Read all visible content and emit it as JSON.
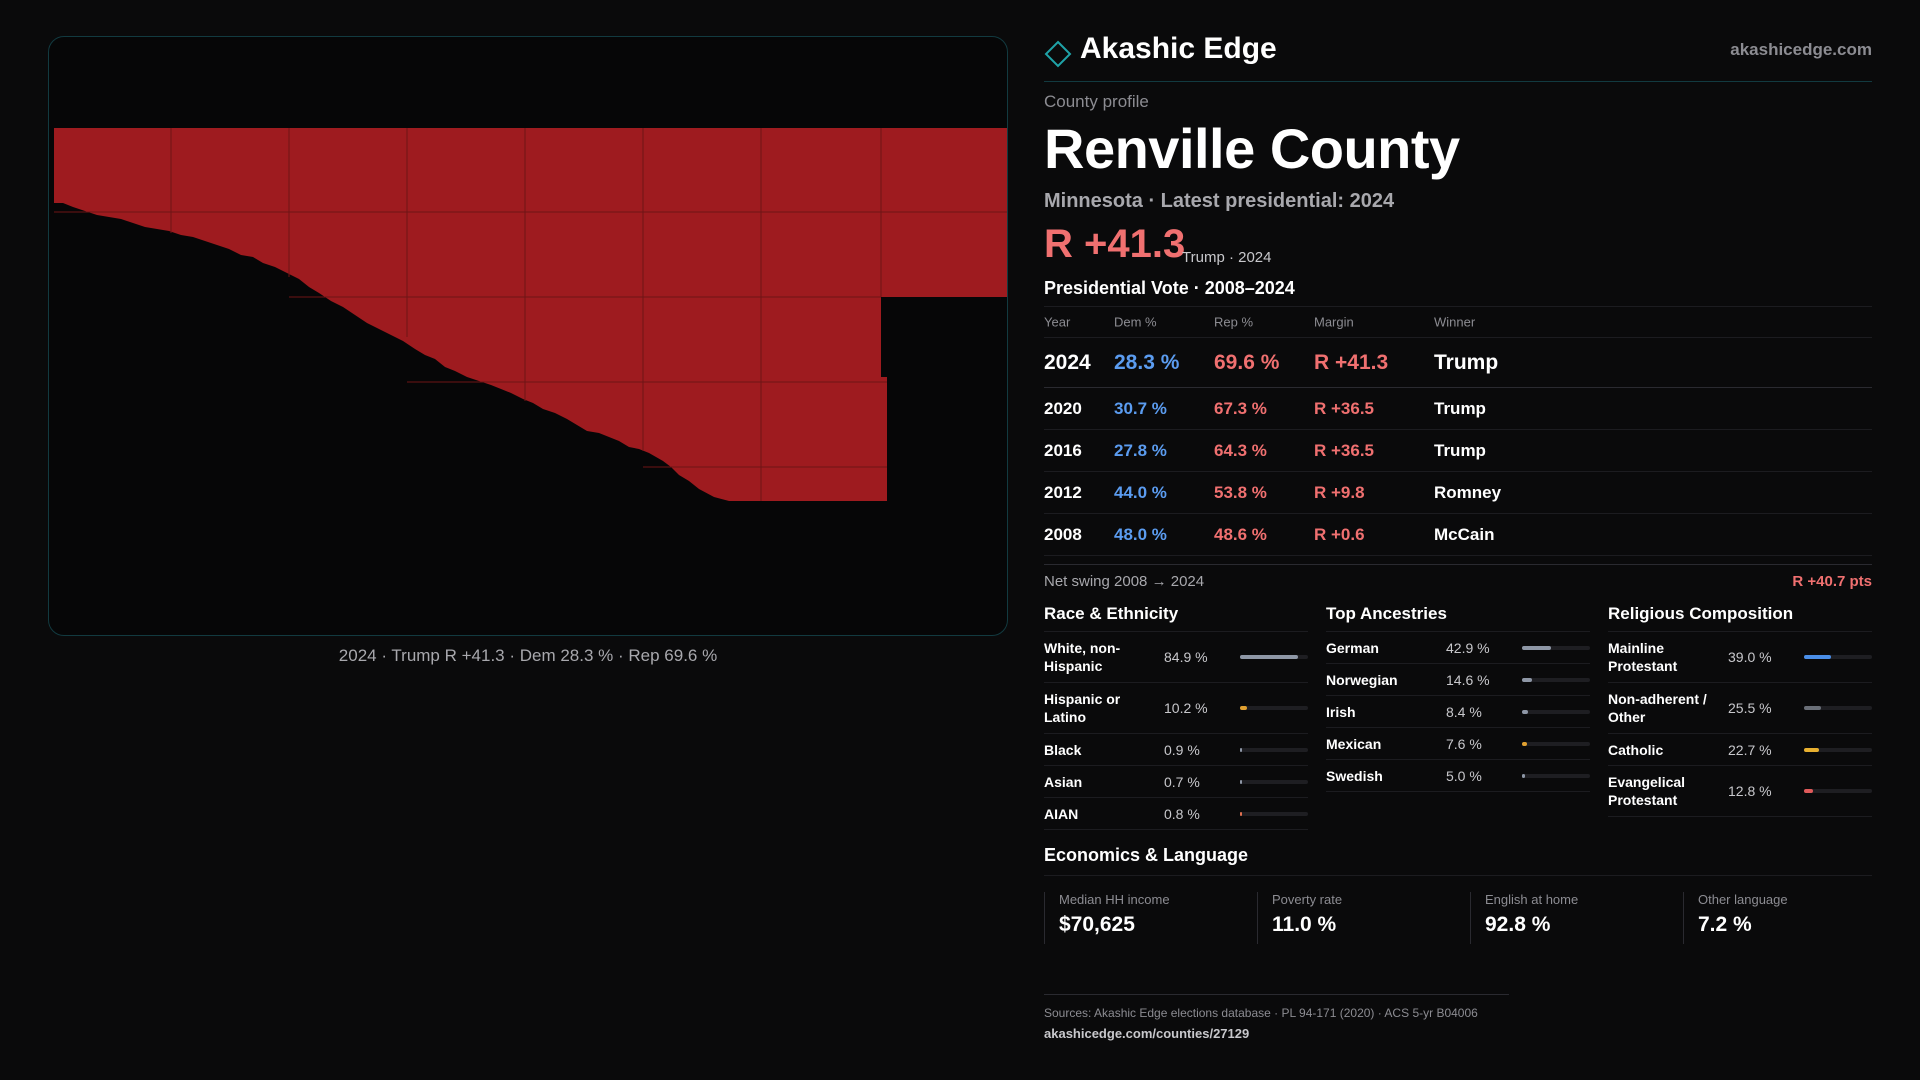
{
  "brand": {
    "name": "Akashic Edge",
    "url": "akashicedge.com"
  },
  "profile": {
    "kicker": "County profile",
    "county": "Renville County",
    "subtitle": "Minnesota · Latest presidential: 2024",
    "margin_big": "R +41.3",
    "margin_note": "Trump · 2024"
  },
  "map": {
    "caption": "2024 · Trump R +41.3 · Dem 28.3 % · Rep 69.6 %",
    "fill_color": "#9e1b1f",
    "icon": "county-map"
  },
  "vote": {
    "title": "Presidential Vote · 2008–2024",
    "headers": {
      "year": "Year",
      "dem": "Dem %",
      "rep": "Rep %",
      "margin": "Margin",
      "winner": "Winner"
    },
    "rows": [
      {
        "year": "2024",
        "dem": "28.3 %",
        "rep": "69.6 %",
        "margin": "R +41.3",
        "winner": "Trump"
      },
      {
        "year": "2020",
        "dem": "30.7 %",
        "rep": "67.3 %",
        "margin": "R +36.5",
        "winner": "Trump"
      },
      {
        "year": "2016",
        "dem": "27.8 %",
        "rep": "64.3 %",
        "margin": "R +36.5",
        "winner": "Trump"
      },
      {
        "year": "2012",
        "dem": "44.0 %",
        "rep": "53.8 %",
        "margin": "R +9.8",
        "winner": "Romney"
      },
      {
        "year": "2008",
        "dem": "48.0 %",
        "rep": "48.6 %",
        "margin": "R +0.6",
        "winner": "McCain"
      }
    ],
    "swing_label": "Net swing 2008 → 2024",
    "swing_value": "R +40.7 pts"
  },
  "race": {
    "title": "Race & Ethnicity",
    "items": [
      {
        "label": "White, non-Hispanic",
        "pct": "84.9 %",
        "value": 84.9,
        "color": "#8e97a6"
      },
      {
        "label": "Hispanic or Latino",
        "pct": "10.2 %",
        "value": 10.2,
        "color": "#e0a030"
      },
      {
        "label": "Black",
        "pct": "0.9 %",
        "value": 0.9,
        "color": "#8e97a6"
      },
      {
        "label": "Asian",
        "pct": "0.7 %",
        "value": 0.7,
        "color": "#8e97a6"
      },
      {
        "label": "AIAN",
        "pct": "0.8 %",
        "value": 0.8,
        "color": "#e07050"
      }
    ]
  },
  "ancestry": {
    "title": "Top Ancestries",
    "items": [
      {
        "label": "German",
        "pct": "42.9 %",
        "value": 42.9,
        "color": "#8e97a6"
      },
      {
        "label": "Norwegian",
        "pct": "14.6 %",
        "value": 14.6,
        "color": "#8e97a6"
      },
      {
        "label": "Irish",
        "pct": "8.4 %",
        "value": 8.4,
        "color": "#8e97a6"
      },
      {
        "label": "Mexican",
        "pct": "7.6 %",
        "value": 7.6,
        "color": "#e0a030"
      },
      {
        "label": "Swedish",
        "pct": "5.0 %",
        "value": 5.0,
        "color": "#8e97a6"
      }
    ]
  },
  "religion": {
    "title": "Religious Composition",
    "items": [
      {
        "label": "Mainline Protestant",
        "pct": "39.0 %",
        "value": 39.0,
        "color": "#4a8ee8"
      },
      {
        "label": "Non-adherent / Other",
        "pct": "25.5 %",
        "value": 25.5,
        "color": "#6a6f78"
      },
      {
        "label": "Catholic",
        "pct": "22.7 %",
        "value": 22.7,
        "color": "#e8b030"
      },
      {
        "label": "Evangelical Protestant",
        "pct": "12.8 %",
        "value": 12.8,
        "color": "#e05a5a"
      }
    ]
  },
  "econ": {
    "title": "Economics & Language",
    "cells": [
      {
        "label": "Median HH income",
        "value": "$70,625"
      },
      {
        "label": "Poverty rate",
        "value": "11.0 %"
      },
      {
        "label": "English at home",
        "value": "92.8 %"
      },
      {
        "label": "Other language",
        "value": "7.2 %"
      }
    ]
  },
  "sources": {
    "text": "Sources: Akashic Edge elections database · PL 94-171 (2020) · ACS 5-yr B04006",
    "url": "akashicedge.com/counties/27129"
  }
}
